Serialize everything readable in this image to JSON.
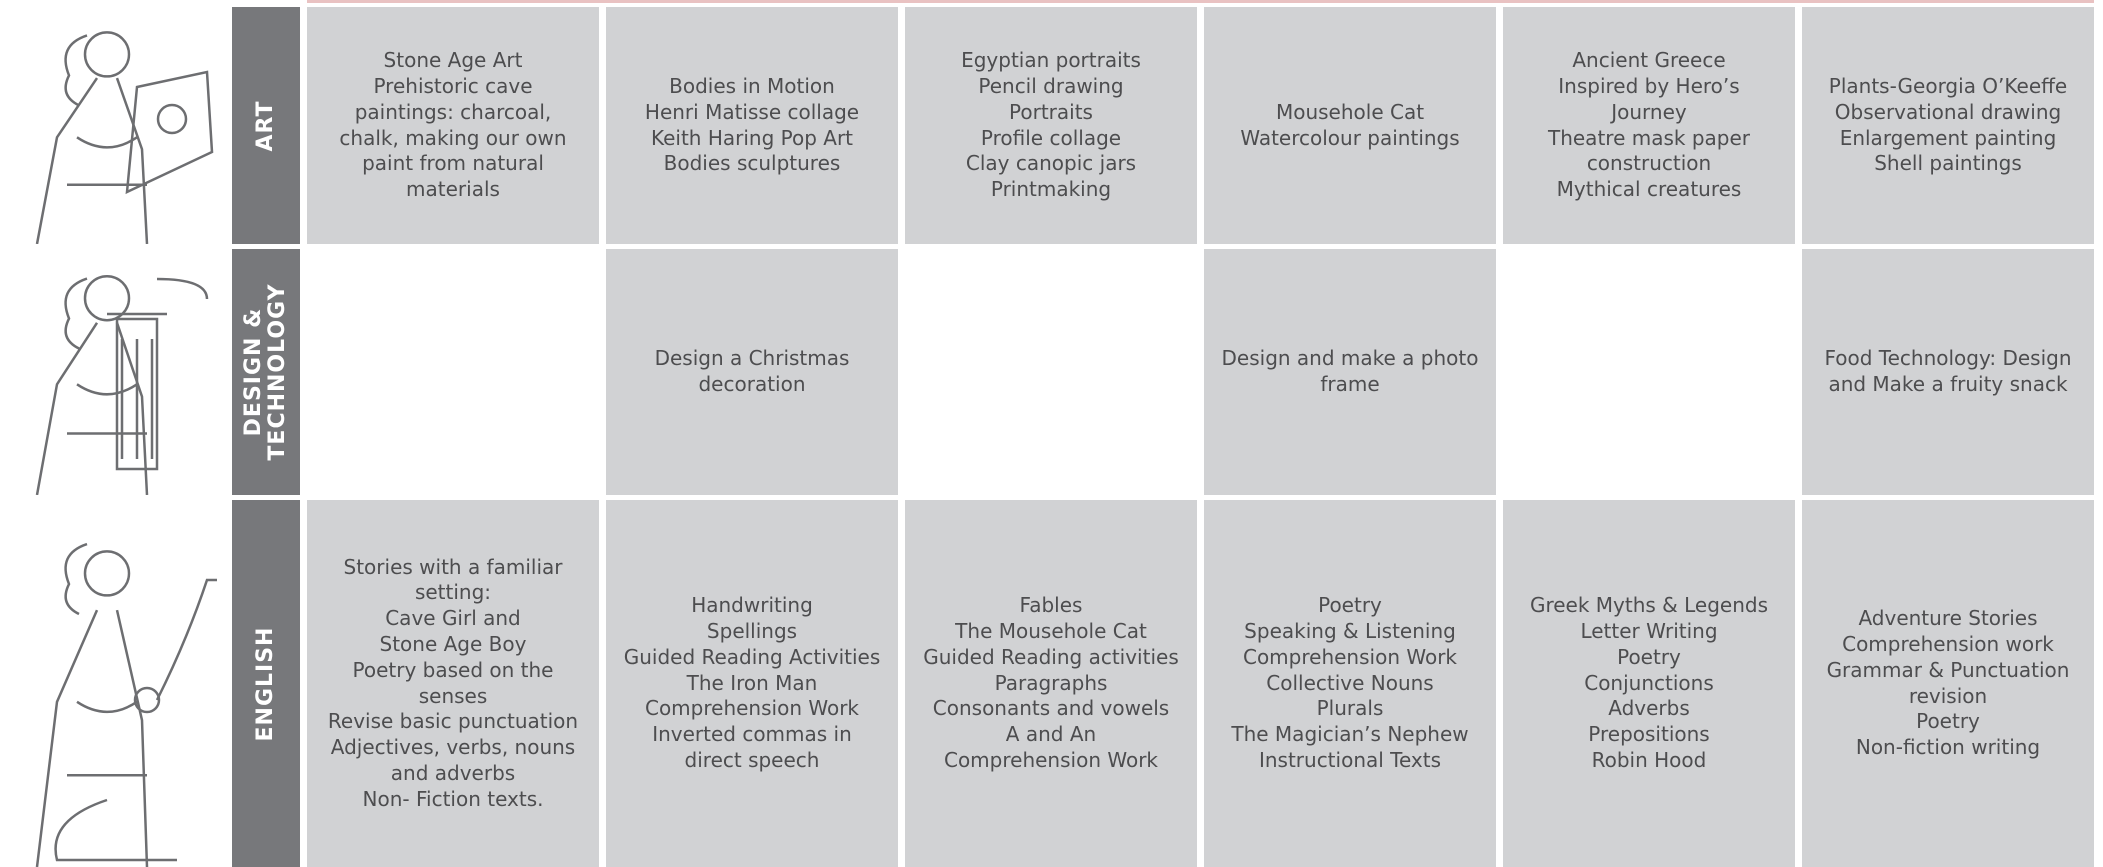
{
  "rows": [
    {
      "subject": "ART",
      "cells": [
        [
          "Stone Age Art",
          "Prehistoric cave",
          "paintings: charcoal,",
          "chalk, making our own",
          "paint from natural",
          "materials"
        ],
        [
          "Bodies in Motion",
          "Henri Matisse collage",
          "Keith Haring Pop Art",
          "Bodies sculptures"
        ],
        [
          "Egyptian portraits",
          "Pencil drawing",
          "Portraits",
          "Profile collage",
          "Clay canopic jars",
          "Printmaking"
        ],
        [
          "Mousehole Cat",
          "Watercolour paintings"
        ],
        [
          "Ancient Greece",
          "Inspired by Hero’s",
          "Journey",
          "Theatre mask paper",
          "construction",
          "Mythical creatures"
        ],
        [
          "Plants-Georgia O’Keeffe",
          "Observational drawing",
          "Enlargement painting",
          "Shell paintings"
        ]
      ]
    },
    {
      "subject": "DESIGN & TECHNOLOGY",
      "cells": [
        [],
        [
          "Design a Christmas",
          "decoration"
        ],
        [],
        [
          "Design and make a photo",
          "frame"
        ],
        [],
        [
          "Food Technology: Design",
          "and Make a fruity snack"
        ]
      ]
    },
    {
      "subject": "ENGLISH",
      "cells": [
        [
          "Stories with a familiar",
          "setting:",
          "Cave Girl and",
          "Stone Age Boy",
          "Poetry based on the",
          "senses",
          "Revise basic punctuation",
          "Adjectives, verbs, nouns",
          "and adverbs",
          "Non- Fiction texts."
        ],
        [
          "Handwriting",
          "Spellings",
          "Guided Reading Activities",
          "The Iron Man",
          "Comprehension Work",
          "Inverted commas in",
          "direct speech"
        ],
        [
          "Fables",
          "The Mousehole Cat",
          "Guided Reading activities",
          "Paragraphs",
          "Consonants and vowels",
          "A and An",
          "Comprehension Work"
        ],
        [
          "Poetry",
          "Speaking & Listening",
          "Comprehension Work",
          "Collective Nouns",
          "Plurals",
          "The Magician’s Nephew",
          "Instructional Texts"
        ],
        [
          "Greek Myths & Legends",
          "Letter Writing",
          "Poetry",
          "Conjunctions",
          "Adverbs",
          "Prepositions",
          "Robin Hood"
        ],
        [
          "Adventure Stories",
          "Comprehension work",
          "Grammar & Punctuation",
          "revision",
          "Poetry",
          "Non-fiction writing"
        ]
      ]
    }
  ]
}
